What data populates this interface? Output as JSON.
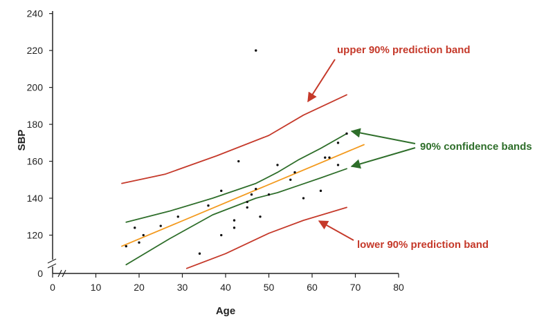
{
  "chart_data": {
    "type": "scatter",
    "title": "",
    "xlabel": "Age",
    "ylabel": "SBP",
    "xlim": [
      0,
      80
    ],
    "ylim": [
      0,
      240
    ],
    "axis_break": true,
    "grid": false,
    "legend": "none",
    "xticks": [
      "0",
      "10",
      "20",
      "30",
      "40",
      "50",
      "60",
      "70",
      "80"
    ],
    "yticks": [
      "0",
      "120",
      "140",
      "160",
      "180",
      "200",
      "220",
      "240"
    ],
    "points": [
      {
        "x": 17,
        "y": 114
      },
      {
        "x": 19,
        "y": 124
      },
      {
        "x": 20,
        "y": 116
      },
      {
        "x": 21,
        "y": 120
      },
      {
        "x": 25,
        "y": 125
      },
      {
        "x": 29,
        "y": 130
      },
      {
        "x": 34,
        "y": 110
      },
      {
        "x": 36,
        "y": 136
      },
      {
        "x": 39,
        "y": 120
      },
      {
        "x": 39,
        "y": 144
      },
      {
        "x": 42,
        "y": 124
      },
      {
        "x": 42,
        "y": 128
      },
      {
        "x": 43,
        "y": 160
      },
      {
        "x": 45,
        "y": 135
      },
      {
        "x": 45,
        "y": 138
      },
      {
        "x": 46,
        "y": 142
      },
      {
        "x": 47,
        "y": 145
      },
      {
        "x": 47,
        "y": 220
      },
      {
        "x": 48,
        "y": 130
      },
      {
        "x": 50,
        "y": 142
      },
      {
        "x": 52,
        "y": 158
      },
      {
        "x": 55,
        "y": 150
      },
      {
        "x": 56,
        "y": 154
      },
      {
        "x": 58,
        "y": 140
      },
      {
        "x": 62,
        "y": 144
      },
      {
        "x": 63,
        "y": 162
      },
      {
        "x": 64,
        "y": 162
      },
      {
        "x": 66,
        "y": 158
      },
      {
        "x": 66,
        "y": 170
      },
      {
        "x": 68,
        "y": 175
      }
    ],
    "series": [
      {
        "role": "fit",
        "color": "#F39A1E",
        "x": [
          16,
          72
        ],
        "y": [
          114,
          169
        ]
      },
      {
        "role": "upper-confidence",
        "color": "#2E6E2A",
        "x": [
          17,
          27,
          37,
          47,
          52,
          57,
          62,
          68
        ],
        "y": [
          127,
          133,
          140,
          148,
          154,
          161,
          167,
          175
        ]
      },
      {
        "role": "lower-confidence",
        "color": "#2E6E2A",
        "x": [
          17,
          27,
          37,
          47,
          52,
          57,
          62,
          68
        ],
        "y": [
          104,
          118,
          131,
          140,
          143,
          147,
          151,
          156
        ]
      },
      {
        "role": "upper-prediction",
        "color": "#C5392A",
        "x": [
          16,
          26,
          38,
          50,
          58,
          68
        ],
        "y": [
          148,
          153,
          163,
          174,
          185,
          196
        ]
      },
      {
        "role": "lower-prediction",
        "color": "#C5392A",
        "x": [
          31,
          40,
          50,
          58,
          68
        ],
        "y": [
          102,
          110,
          121,
          128,
          135
        ]
      }
    ],
    "annotations": [
      {
        "text": "upper 90% prediction band",
        "color": "#C5392A"
      },
      {
        "text": "90% confidence  bands",
        "color": "#2E6E2A"
      },
      {
        "text": "lower 90% prediction band",
        "color": "#C5392A"
      }
    ],
    "colors": {
      "points": "#111111",
      "axis": "#222222",
      "fit": "#F39A1E",
      "confidence": "#2E6E2A",
      "prediction": "#C5392A"
    }
  }
}
